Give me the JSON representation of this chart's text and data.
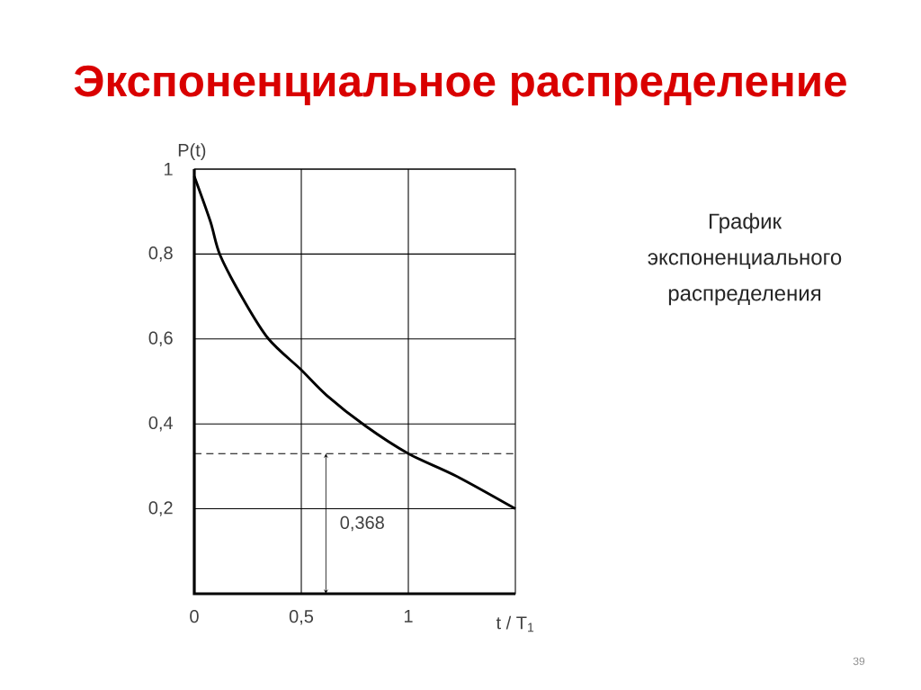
{
  "chart_data": {
    "type": "line",
    "title": "Экспоненциальное распределение",
    "xlabel": "t / T$_{1}$",
    "ylabel": "P(t)",
    "x": [
      0,
      0.075,
      0.121,
      0.227,
      0.347,
      0.498,
      0.619,
      0.8,
      1.0,
      1.224,
      1.5
    ],
    "series": [
      {
        "color": "#000000",
        "values": [
          0.983,
          0.877,
          0.797,
          0.695,
          0.6,
          0.528,
          0.467,
          0.395,
          0.33,
          0.277,
          0.2
        ]
      }
    ],
    "xlim": [
      0,
      1.5
    ],
    "ylim": [
      0,
      1
    ],
    "xticks": [
      0,
      {
        "value": 0.5,
        "label": "0,5"
      },
      1
    ],
    "yticks": [
      {
        "value": 0.2,
        "label": "0,2"
      },
      {
        "value": 0.4,
        "label": "0,4"
      },
      {
        "value": 0.6,
        "label": "0,6"
      },
      {
        "value": 0.8,
        "label": "0,8"
      },
      1
    ],
    "grid": true,
    "line_style": "solid",
    "ref_lines": [
      {
        "axis": "y",
        "value": 0.33,
        "line_style": "dashed",
        "color": "#000000"
      }
    ],
    "annotations": [
      "0,368",
      "График экспоненциального распределения",
      "39"
    ]
  }
}
